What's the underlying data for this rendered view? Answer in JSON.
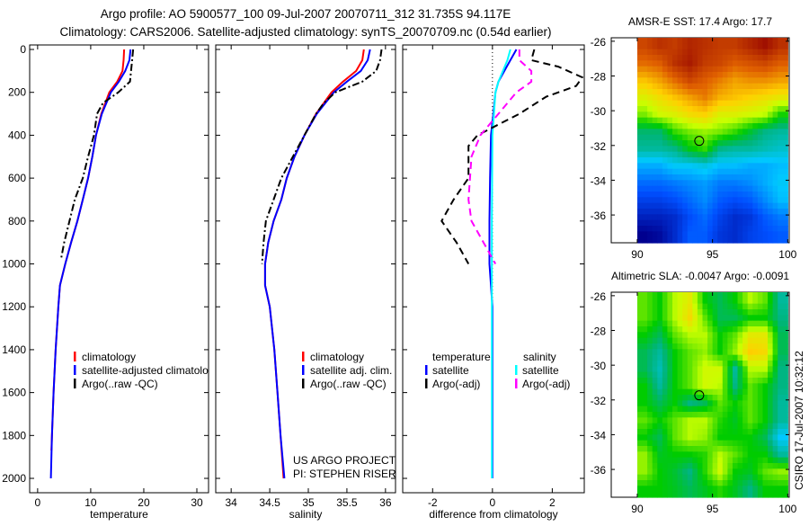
{
  "title": {
    "line1": "Argo profile: AO 5900577_100 09-Jul-2007 20070711_312 31.735S 94.117E",
    "line2": "Climatology: CARS2006. Satellite-adjusted climatology: synTS_20070709.nc (0.54d earlier)"
  },
  "footer": {
    "project": "US ARGO PROJECT",
    "pi": "PI: STEPHEN RISER",
    "stamp": "CSIRO 17-Jul-2007 10:32:12"
  },
  "colors": {
    "climatology": "#ff0000",
    "satellite": "#0000ff",
    "argo": "#000000",
    "sal_satellite": "#00ffff",
    "sal_argo": "#ff00ff"
  },
  "chart_data": [
    {
      "id": "temperature",
      "type": "line",
      "xlabel": "temperature",
      "ylabel": "",
      "xlim": [
        -1.5,
        32.2
      ],
      "ylim": [
        2067,
        -21
      ],
      "xticks": [
        0,
        10,
        20,
        30
      ],
      "yticks": [
        0,
        200,
        400,
        600,
        800,
        1000,
        1200,
        1400,
        1600,
        1800,
        2000
      ],
      "show_ytick_labels": true,
      "legend": {
        "placement": "bottom-center",
        "entries": [
          "climatology",
          "satellite-adjusted climatology",
          "Argo(..raw -QC)"
        ]
      },
      "series": [
        {
          "name": "climatology",
          "color": "#ff0000",
          "style": "solid",
          "depth": [
            0,
            50,
            100,
            150,
            200,
            300,
            400,
            500,
            600,
            700,
            800,
            900,
            1000,
            1100,
            1200,
            1400,
            1600,
            1870
          ],
          "values": [
            16.3,
            16.2,
            16.0,
            15.0,
            13.5,
            12.0,
            11.0,
            10.3,
            9.5,
            8.5,
            7.5,
            6.3,
            5.2,
            4.2,
            3.9,
            3.4,
            3.0,
            2.6
          ]
        },
        {
          "name": "satellite-adjusted climatology",
          "color": "#0000ff",
          "style": "solid",
          "depth": [
            0,
            50,
            100,
            150,
            200,
            300,
            400,
            500,
            600,
            700,
            800,
            900,
            1000,
            1100,
            1200,
            1400,
            1600,
            1800,
            2000
          ],
          "values": [
            17.5,
            17.3,
            16.5,
            15.3,
            13.8,
            12.1,
            11.0,
            10.3,
            9.5,
            8.5,
            7.5,
            6.3,
            5.2,
            4.2,
            3.9,
            3.4,
            3.0,
            2.7,
            2.5
          ]
        },
        {
          "name": "Argo(..raw -QC)",
          "color": "#000000",
          "style": "dashdot",
          "depth": [
            0,
            50,
            150,
            200,
            250,
            300,
            400,
            500,
            600,
            700,
            800,
            900,
            980
          ],
          "values": [
            18.0,
            17.8,
            17.4,
            15.2,
            12.3,
            11.2,
            10.6,
            9.5,
            8.5,
            7.0,
            6.0,
            5.0,
            4.4
          ]
        }
      ]
    },
    {
      "id": "salinity",
      "type": "line",
      "xlabel": "salinity",
      "xlim": [
        33.8,
        36.13
      ],
      "ylim": [
        2067,
        -21
      ],
      "xticks": [
        34,
        34.5,
        35,
        35.5,
        36
      ],
      "yticks": [
        0,
        200,
        400,
        600,
        800,
        1000,
        1200,
        1400,
        1600,
        1800,
        2000
      ],
      "show_ytick_labels": false,
      "legend": {
        "placement": "bottom-center",
        "entries": [
          "climatology",
          "satellite adj. clim.",
          "Argo(..raw -QC)"
        ]
      },
      "series": [
        {
          "name": "climatology",
          "color": "#ff0000",
          "style": "solid",
          "depth": [
            0,
            50,
            100,
            150,
            200,
            300,
            400,
            500,
            600,
            700,
            800,
            900,
            1000,
            1100,
            1200,
            1400,
            1600,
            1800,
            2000
          ],
          "values": [
            35.72,
            35.7,
            35.62,
            35.45,
            35.3,
            35.1,
            34.95,
            34.82,
            34.72,
            34.65,
            34.55,
            34.48,
            34.44,
            34.44,
            34.5,
            34.56,
            34.6,
            34.64,
            34.68
          ]
        },
        {
          "name": "satellite adj. clim.",
          "color": "#0000ff",
          "style": "solid",
          "depth": [
            0,
            50,
            100,
            150,
            200,
            300,
            400,
            500,
            600,
            700,
            800,
            900,
            1000,
            1100,
            1200,
            1400,
            1600,
            1800,
            2000
          ],
          "values": [
            35.8,
            35.77,
            35.68,
            35.5,
            35.33,
            35.11,
            34.95,
            34.82,
            34.72,
            34.65,
            34.55,
            34.48,
            34.44,
            34.44,
            34.5,
            34.56,
            34.6,
            34.64,
            34.69
          ]
        },
        {
          "name": "Argo(..raw -QC)",
          "color": "#000000",
          "style": "dashdot",
          "depth": [
            0,
            50,
            100,
            150,
            200,
            250,
            300,
            400,
            500,
            600,
            700,
            800,
            900,
            1000
          ],
          "values": [
            35.95,
            35.93,
            35.88,
            35.7,
            35.35,
            35.2,
            35.1,
            34.95,
            34.8,
            34.65,
            34.55,
            34.45,
            34.42,
            34.4
          ]
        }
      ]
    },
    {
      "id": "difference",
      "type": "line",
      "xlabel": "difference from climatology",
      "xlim": [
        -3.0,
        3.07
      ],
      "ylim": [
        2067,
        -21
      ],
      "xticks": [
        -2,
        0,
        2
      ],
      "yticks": [
        0,
        200,
        400,
        600,
        800,
        1000,
        1200,
        1400,
        1600,
        1800,
        2000
      ],
      "show_ytick_labels": false,
      "legend": {
        "placement": "bottom-center",
        "headers": [
          "temperature",
          "salinity"
        ],
        "entries": [
          "satellite",
          "Argo(-adj)",
          "satellite",
          "Argo(-adj)"
        ]
      },
      "series": [
        {
          "name": "temperature satellite",
          "color": "#0000ff",
          "style": "solid",
          "depth": [
            0,
            50,
            100,
            150,
            200,
            300,
            400,
            600,
            800,
            1000,
            1100,
            1200,
            1600,
            2000
          ],
          "values": [
            0.8,
            0.6,
            0.4,
            0.2,
            0.1,
            0.03,
            -0.05,
            -0.08,
            -0.1,
            -0.1,
            -0.05,
            0,
            0,
            0
          ]
        },
        {
          "name": "salinity satellite",
          "color": "#00ffff",
          "style": "solid",
          "depth": [
            0,
            50,
            100,
            150,
            200,
            300,
            400,
            800,
            1200,
            1600,
            2000
          ],
          "values": [
            0.6,
            0.5,
            0.35,
            0.2,
            0.1,
            0.05,
            0.0,
            -0.02,
            -0.02,
            -0.02,
            -0.02
          ]
        },
        {
          "name": "temperature Argo(-adj)",
          "color": "#000000",
          "style": "dashed",
          "depth": [
            0,
            50,
            80,
            130,
            170,
            220,
            300,
            350,
            400,
            450,
            600,
            700,
            800,
            900,
            1000
          ],
          "values": [
            1.4,
            1.3,
            2.2,
            3.0,
            2.8,
            1.8,
            0.9,
            0.2,
            -0.5,
            -0.8,
            -0.8,
            -1.3,
            -1.7,
            -1.2,
            -0.8
          ]
        },
        {
          "name": "salinity Argo(-adj)",
          "color": "#ff00ff",
          "style": "dashed",
          "depth": [
            0,
            50,
            100,
            150,
            200,
            300,
            400,
            500,
            700,
            800,
            900,
            1000
          ],
          "values": [
            0.9,
            0.9,
            1.3,
            1.3,
            0.8,
            0.2,
            -0.4,
            -0.7,
            -0.8,
            -0.7,
            -0.3,
            0.1
          ]
        }
      ]
    },
    {
      "id": "sst-map",
      "type": "heatmap",
      "title": "AMSR-E SST: 17.4 Argo: 17.7",
      "xlim": [
        88.27,
        100.1
      ],
      "ylim": [
        -37.6,
        -25.8
      ],
      "xticks": [
        90,
        95,
        100
      ],
      "yticks": [
        -26,
        -28,
        -30,
        -32,
        -34,
        -36
      ],
      "lon": [
        90,
        91,
        92,
        93,
        94,
        95,
        96,
        97,
        98,
        99
      ],
      "lat": [
        -26,
        -27,
        -28,
        -29,
        -30,
        -31,
        -32,
        -33,
        -34,
        -35,
        -36,
        -37
      ],
      "crange": [
        14.8,
        19.7
      ],
      "marker": {
        "lon": 94.117,
        "lat": -31.735
      },
      "values": [
        [
          19.2,
          19.4,
          19.3,
          19.5,
          19.4,
          19.3,
          19.3,
          19.5,
          19.7,
          19.4
        ],
        [
          18.9,
          19.0,
          19.4,
          19.6,
          19.3,
          19.2,
          19.0,
          19.1,
          19.2,
          19.0
        ],
        [
          18.4,
          18.6,
          18.9,
          19.2,
          19.0,
          18.8,
          18.6,
          18.7,
          18.7,
          18.6
        ],
        [
          18.0,
          18.2,
          18.4,
          18.6,
          18.8,
          18.5,
          18.4,
          18.3,
          18.2,
          18.1
        ],
        [
          17.6,
          17.9,
          18.0,
          18.2,
          18.3,
          18.0,
          18.0,
          17.9,
          17.8,
          17.3
        ],
        [
          16.9,
          16.9,
          17.4,
          17.6,
          17.7,
          17.6,
          17.4,
          17.1,
          16.8,
          16.7
        ],
        [
          16.7,
          16.7,
          16.8,
          17.2,
          17.4,
          16.8,
          16.7,
          16.7,
          16.6,
          16.5
        ],
        [
          16.1,
          16.1,
          16.3,
          16.3,
          16.4,
          16.2,
          16.2,
          16.1,
          16.1,
          16.2
        ],
        [
          15.7,
          15.7,
          15.8,
          15.9,
          16.0,
          15.8,
          15.8,
          15.9,
          16.1,
          16.3
        ],
        [
          15.4,
          15.4,
          15.5,
          15.7,
          15.9,
          15.6,
          15.5,
          15.6,
          15.9,
          16.2
        ],
        [
          15.1,
          15.1,
          15.2,
          15.5,
          15.7,
          15.4,
          15.2,
          15.3,
          15.6,
          15.8
        ],
        [
          14.8,
          14.9,
          15.2,
          15.6,
          15.6,
          15.3,
          15.2,
          15.4,
          15.5,
          15.6
        ]
      ]
    },
    {
      "id": "sla-map",
      "type": "heatmap",
      "title": "Altimetric SLA: -0.0047 Argo: -0.0091",
      "xlim": [
        88.27,
        100.1
      ],
      "ylim": [
        -37.6,
        -25.8
      ],
      "xticks": [
        90,
        95,
        100
      ],
      "yticks": [
        -26,
        -28,
        -30,
        -32,
        -34,
        -36
      ],
      "lon": [
        90,
        91,
        92,
        93,
        94,
        95,
        96,
        97,
        98,
        99
      ],
      "lat": [
        -26,
        -27,
        -28,
        -29,
        -30,
        -31,
        -32,
        -33,
        -34,
        -35,
        -36,
        -37
      ],
      "crange": [
        -0.45,
        0.45
      ],
      "marker": {
        "lon": 94.117,
        "lat": -31.735
      },
      "values": [
        [
          0.05,
          0,
          0.1,
          0.15,
          0,
          -0.05,
          0,
          0.1,
          0.05,
          -0.1
        ],
        [
          0.05,
          0,
          0.1,
          0.18,
          0.05,
          -0.05,
          -0.05,
          0,
          0,
          -0.08
        ],
        [
          0,
          -0.05,
          0.05,
          0.1,
          0.1,
          0.0,
          0.05,
          0.15,
          0.15,
          -0.05
        ],
        [
          -0.05,
          -0.1,
          0,
          0.05,
          0.08,
          0.0,
          0.08,
          0.2,
          0.18,
          -0.05
        ],
        [
          -0.05,
          -0.12,
          0,
          0.05,
          0.12,
          0.12,
          -0.1,
          0.1,
          0.1,
          -0.08
        ],
        [
          0,
          -0.1,
          0,
          0.05,
          0.12,
          0.1,
          -0.08,
          0.05,
          0,
          -0.08
        ],
        [
          0,
          -0.05,
          0,
          -0.08,
          -0.05,
          0.05,
          0,
          0.05,
          0,
          -0.1
        ],
        [
          0.05,
          0,
          0.05,
          0.1,
          0.1,
          0.02,
          -0.02,
          0.05,
          0,
          -0.1
        ],
        [
          0,
          -0.05,
          0.05,
          0.1,
          0.08,
          0.0,
          0,
          0,
          -0.05,
          -0.18
        ],
        [
          0.08,
          -0.02,
          0,
          0,
          0.02,
          0.1,
          0.05,
          0,
          0,
          -0.1
        ],
        [
          0.08,
          0,
          -0.03,
          -0.08,
          0.02,
          0.12,
          0,
          -0.02,
          0.05,
          0.08
        ],
        [
          0,
          0,
          -0.02,
          -0.05,
          -0.02,
          0.02,
          -0.02,
          -0.08,
          0,
          0
        ]
      ]
    }
  ]
}
